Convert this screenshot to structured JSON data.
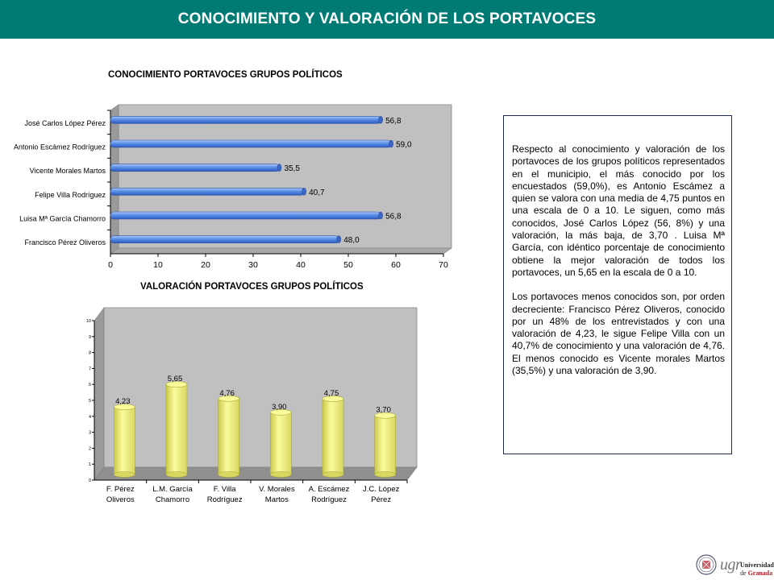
{
  "header": {
    "title": "CONOCIMIENTO Y VALORACIÓN DE LOS PORTAVOCES"
  },
  "colors": {
    "header_bg": "#007b74",
    "bar_blue": "#5b8ee8",
    "bar_yellow": "#f2f27a",
    "plot_bg": "#c0c0c0"
  },
  "chart_data": [
    {
      "type": "bar",
      "orientation": "horizontal",
      "title": "CONOCIMIENTO PORTAVOCES GRUPOS POLÍTICOS",
      "categories": [
        "José Carlos López Pérez",
        "Antonio Escámez Rodríguez",
        "Vicente Morales Martos",
        "Felipe Villa Rodríguez",
        "Luisa Mª García Chamorro",
        "Francisco Pérez Oliveros"
      ],
      "values": [
        56.8,
        59.0,
        35.5,
        40.7,
        56.8,
        48.0
      ],
      "value_labels": [
        "56,8",
        "59,0",
        "35,5",
        "40,7",
        "56,8",
        "48,0"
      ],
      "xlim": [
        0,
        70
      ],
      "ticks": [
        "0",
        "10",
        "20",
        "30",
        "40",
        "50",
        "60",
        "70"
      ]
    },
    {
      "type": "bar",
      "orientation": "vertical",
      "title": "VALORACIÓN PORTAVOCES GRUPOS POLÍTICOS",
      "categories": [
        [
          "F. Pérez",
          "Oliveros"
        ],
        [
          "L.M. García",
          "Chamorro"
        ],
        [
          "F. Villa",
          "Rodríguez"
        ],
        [
          "V. Morales",
          "Martos"
        ],
        [
          "A. Escámez",
          "Rodríguez"
        ],
        [
          "J.C. López",
          "Pérez"
        ]
      ],
      "values": [
        4.23,
        5.65,
        4.76,
        3.9,
        4.75,
        3.7
      ],
      "value_labels": [
        "4,23",
        "5,65",
        "4,76",
        "3,90",
        "4,75",
        "3,70"
      ],
      "ylim": [
        0,
        10
      ],
      "ticks": [
        "0",
        "1",
        "2",
        "3",
        "4",
        "5",
        "6",
        "7",
        "8",
        "9",
        "10"
      ]
    }
  ],
  "description": {
    "paragraphs": [
      "Respecto al conocimiento y valoración de los portavoces de los grupos políticos representados en el municipio, el más conocido por los encuestados (59,0%), es Antonio Escámez a quien se valora con una media de 4,75 puntos en una escala de 0 a 10. Le siguen, como más conocidos, José Carlos López (56, 8%) y una valoración, la más baja, de 3,70 . Luisa Mª García, con idéntico porcentaje de conocimiento obtiene la mejor valoración de todos los portavoces, un 5,65 en la escala de 0 a 10.",
      "Los portavoces menos conocidos son, por orden decreciente: Francisco Pérez Oliveros, conocido por un 48% de los entrevistados y con una valoración de 4,23, le sigue Felipe Villa con un 40,7% de conocimiento y una valoración de 4,76. El menos conocido es Vicente morales Martos (35,5%) y una valoración de 3,90."
    ]
  },
  "logo": {
    "mark": "ugr",
    "line1": "Universidad",
    "line2_prefix": "de",
    "line2_name": "Granada"
  }
}
